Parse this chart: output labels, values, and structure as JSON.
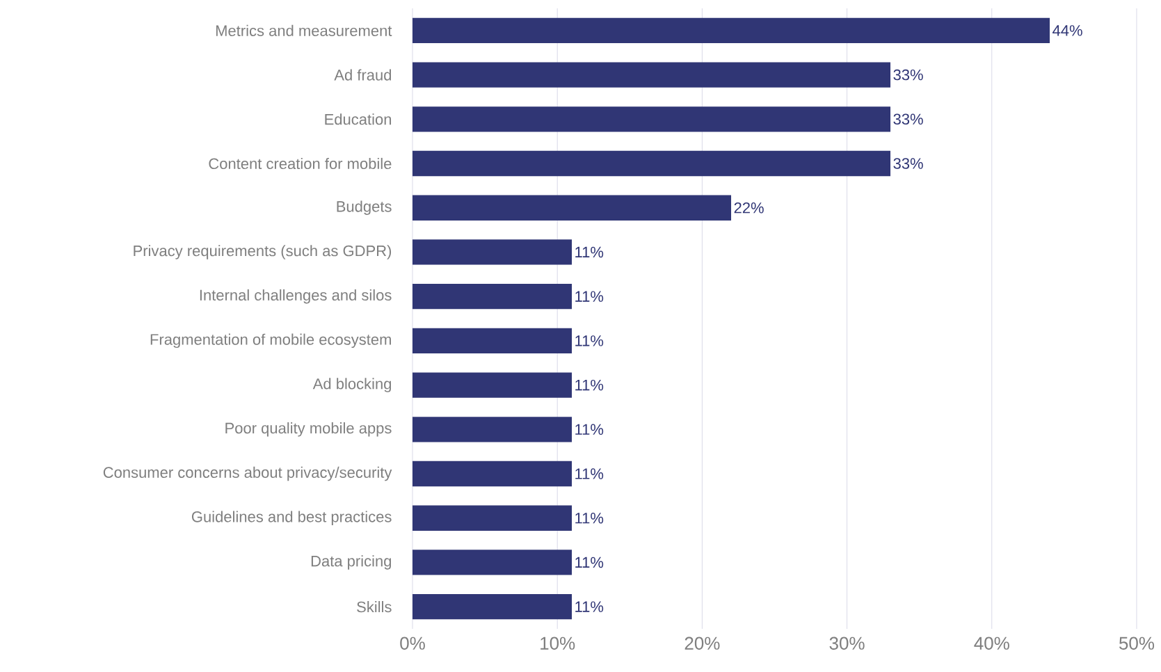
{
  "chart_data": {
    "type": "bar",
    "orientation": "horizontal",
    "categories": [
      "Metrics and measurement",
      "Ad fraud",
      "Education",
      "Content creation for mobile",
      "Budgets",
      "Privacy requirements (such as GDPR)",
      "Internal challenges and silos",
      "Fragmentation of mobile ecosystem",
      "Ad blocking",
      "Poor quality mobile apps",
      "Consumer concerns about privacy/security",
      "Guidelines and best practices",
      "Data pricing",
      "Skills"
    ],
    "values": [
      44,
      33,
      33,
      33,
      22,
      11,
      11,
      11,
      11,
      11,
      11,
      11,
      11,
      11
    ],
    "value_labels": [
      "44%",
      "33%",
      "33%",
      "33%",
      "22%",
      "11%",
      "11%",
      "11%",
      "11%",
      "11%",
      "11%",
      "11%",
      "11%",
      "11%"
    ],
    "color": "#303675",
    "xlim": [
      0,
      50
    ],
    "xticks": [
      {
        "value": 0,
        "label": "0%"
      },
      {
        "value": 10,
        "label": "10%"
      },
      {
        "value": 20,
        "label": "20%"
      },
      {
        "value": 30,
        "label": "30%"
      },
      {
        "value": 40,
        "label": "40%"
      },
      {
        "value": 50,
        "label": "50%"
      }
    ],
    "grid": "x"
  }
}
